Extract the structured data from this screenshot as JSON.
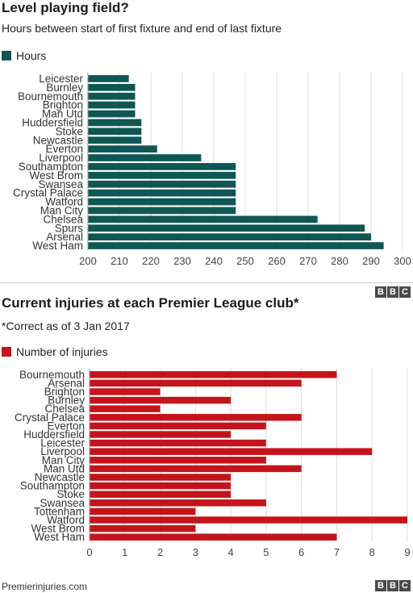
{
  "chart_data": [
    {
      "type": "bar",
      "orientation": "horizontal",
      "title": "Level playing field?",
      "subtitle": "Hours between start of first fixture and end of last fixture",
      "series": [
        {
          "name": "Hours",
          "color": "#0f5755",
          "values": [
            213,
            215,
            215,
            215,
            215,
            217,
            217,
            217,
            222,
            236,
            247,
            247,
            247,
            247,
            247,
            247,
            273,
            288,
            290,
            294
          ]
        }
      ],
      "categories": [
        "Leicester",
        "Burnley",
        "Bournemouth",
        "Brighton",
        "Man Utd",
        "Huddersfield",
        "Stoke",
        "Newcastle",
        "Everton",
        "Liverpool",
        "Southampton",
        "West Brom",
        "Swansea",
        "Crystal Palace",
        "Watford",
        "Man City",
        "Chelsea",
        "Spurs",
        "Arsenal",
        "West Ham"
      ],
      "xlim": [
        200,
        300
      ],
      "ticks": [
        200,
        210,
        220,
        230,
        240,
        250,
        260,
        270,
        280,
        290,
        300
      ],
      "grid": true
    },
    {
      "type": "bar",
      "orientation": "horizontal",
      "title": "Current injuries at each Premier League club*",
      "subtitle": "*Correct as of 3 Jan 2017",
      "series": [
        {
          "name": "Number of injuries",
          "color": "#c4141b",
          "values": [
            7,
            6,
            2,
            4,
            2,
            6,
            5,
            4,
            5,
            8,
            5,
            6,
            4,
            4,
            4,
            5,
            3,
            9,
            3,
            7
          ]
        }
      ],
      "categories": [
        "Bournemouth",
        "Arsenal",
        "Brighton",
        "Burnley",
        "Chelsea",
        "Crystal Palace",
        "Everton",
        "Huddersfield",
        "Leicester",
        "Liverpool",
        "Man City",
        "Man Utd",
        "Newcastle",
        "Southampton",
        "Stoke",
        "Swansea",
        "Tottenham",
        "Watford",
        "West Brom",
        "West Ham"
      ],
      "xlim": [
        0,
        9
      ],
      "ticks": [
        0,
        1,
        2,
        3,
        4,
        5,
        6,
        7,
        8,
        9
      ],
      "grid": true
    }
  ],
  "footer": {
    "source": "Premierinjuries.com"
  },
  "branding": {
    "letters": [
      "B",
      "B",
      "C"
    ]
  }
}
